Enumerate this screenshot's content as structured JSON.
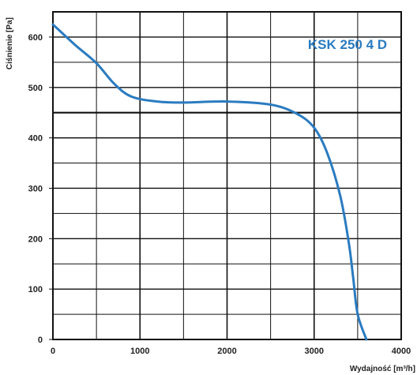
{
  "chart_data": {
    "type": "line",
    "title": "KSK 250 4 D",
    "xlabel": "Wydajność [m³/h]",
    "ylabel": "Ciśnienie [Pa]",
    "xlim": [
      0,
      4000
    ],
    "ylim": [
      0,
      650
    ],
    "x_ticks": [
      "0",
      "1000",
      "2000",
      "3000",
      "4000"
    ],
    "y_ticks": [
      "0",
      "100",
      "200",
      "300",
      "400",
      "500",
      "600"
    ],
    "grid": true,
    "series": [
      {
        "color": "#2a7bc0",
        "x": [
          0,
          250,
          500,
          700,
          900,
          1200,
          1500,
          2000,
          2500,
          2800,
          3000,
          3150,
          3300,
          3400,
          3450,
          3500,
          3600
        ],
        "y": [
          625,
          585,
          548,
          508,
          482,
          472,
          470,
          472,
          466,
          448,
          420,
          370,
          285,
          190,
          120,
          50,
          0
        ]
      }
    ]
  }
}
